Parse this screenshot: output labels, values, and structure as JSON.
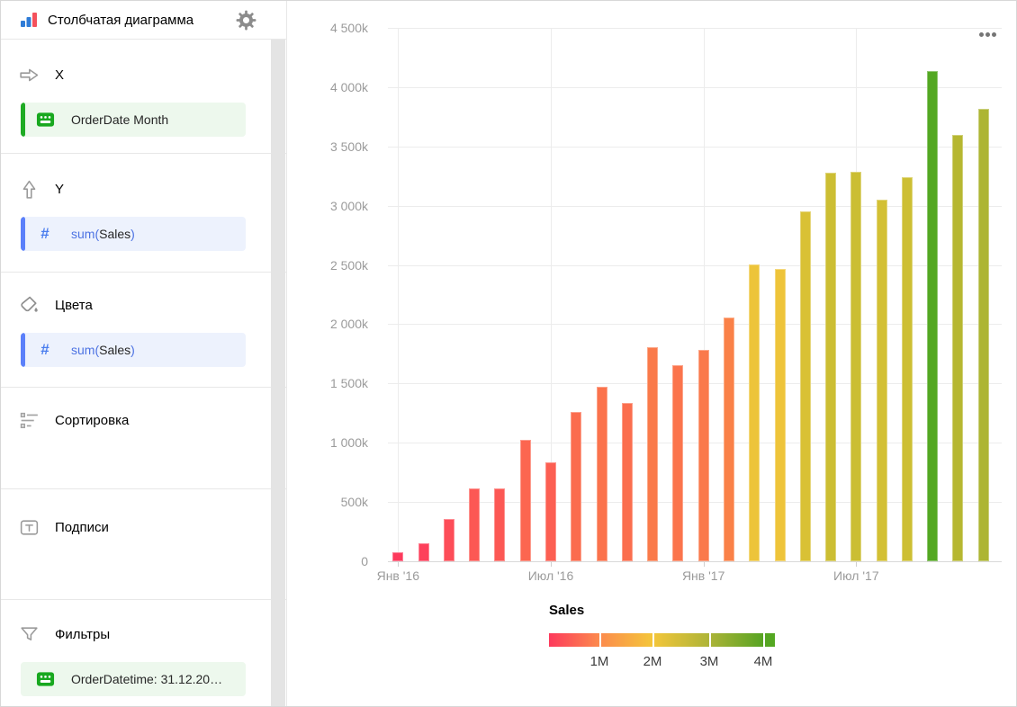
{
  "header": {
    "title": "Столбчатая диаграмма"
  },
  "sidebar": {
    "sections": {
      "x": {
        "label": "X"
      },
      "y": {
        "label": "Y"
      },
      "colors": {
        "label": "Цвета"
      },
      "sorting": {
        "label": "Сортировка"
      },
      "labels": {
        "label": "Подписи"
      },
      "filters": {
        "label": "Фильтры"
      }
    },
    "fields": {
      "x_field": {
        "text": "OrderDate Month"
      },
      "y_field": {
        "fn": "sum(",
        "name": "Sales",
        "close": ")"
      },
      "color_field": {
        "fn": "sum(",
        "name": "Sales",
        "close": ")"
      },
      "filter_field": {
        "text": "OrderDatetime: 31.12.20…"
      }
    },
    "icons": [
      "chart-type-icon",
      "gear-icon",
      "arrow-right-icon",
      "arrow-up-icon",
      "paint-icon",
      "sort-icon",
      "text-label-icon",
      "funnel-icon",
      "calendar-icon",
      "hash-icon"
    ]
  },
  "accent_colors": {
    "green": "#1fab24",
    "blue": "#5b80fa",
    "chip_green_bg": "#edf8ed",
    "chip_blue_bg": "#edf2fd"
  },
  "chart_data": {
    "type": "bar",
    "title": "",
    "months": [
      "2016-01",
      "2016-02",
      "2016-03",
      "2016-04",
      "2016-05",
      "2016-06",
      "2016-07",
      "2016-08",
      "2016-09",
      "2016-10",
      "2016-11",
      "2016-12",
      "2017-01",
      "2017-02",
      "2017-03",
      "2017-04",
      "2017-05",
      "2017-06",
      "2017-07",
      "2017-08",
      "2017-09",
      "2017-10",
      "2017-11",
      "2017-12"
    ],
    "values_k": [
      75,
      150,
      355,
      615,
      615,
      1025,
      835,
      1260,
      1470,
      1335,
      1805,
      1655,
      1785,
      2055,
      2505,
      2465,
      2950,
      3280,
      3285,
      3050,
      3240,
      4135,
      3595,
      3815
    ],
    "bar_colors": [
      "#fd3a5c",
      "#fd405b",
      "#fd4d58",
      "#fc5854",
      "#fc5854",
      "#fc6650",
      "#fc5f52",
      "#fb6c4e",
      "#fb724c",
      "#fb6e4e",
      "#fa7a4a",
      "#fb744c",
      "#fa794b",
      "#fa8148",
      "#edc43a",
      "#eec43a",
      "#d9c135",
      "#ccbe33",
      "#cbbe33",
      "#d3c034",
      "#cdbf33",
      "#53a822",
      "#b6b731",
      "#adb533"
    ],
    "x_tick_labels": [
      "Янв '16",
      "Июл '16",
      "Янв '17",
      "Июл '17"
    ],
    "x_tick_indices": [
      0,
      6,
      12,
      18
    ],
    "y_tick_labels": [
      "0",
      "500k",
      "1 000k",
      "1 500k",
      "2 000k",
      "2 500k",
      "3 000k",
      "3 500k",
      "4 000k",
      "4 500k"
    ],
    "y_tick_step_k": 500,
    "ylim_k": [
      0,
      4500
    ],
    "grid": true,
    "legend": {
      "title": "Sales",
      "tick_labels": [
        "1M",
        "2M",
        "3M",
        "4M"
      ],
      "position": "bottom",
      "gradient_stops": [
        {
          "pos": 0,
          "color": "#fd3a5c"
        },
        {
          "pos": 0.223,
          "color": "#fc8a4d"
        },
        {
          "pos": 0.458,
          "color": "#f4c63a"
        },
        {
          "pos": 0.709,
          "color": "#adb438"
        },
        {
          "pos": 0.948,
          "color": "#57a423"
        },
        {
          "pos": 1,
          "color": "#53a822"
        }
      ]
    },
    "menu_button": "…"
  }
}
